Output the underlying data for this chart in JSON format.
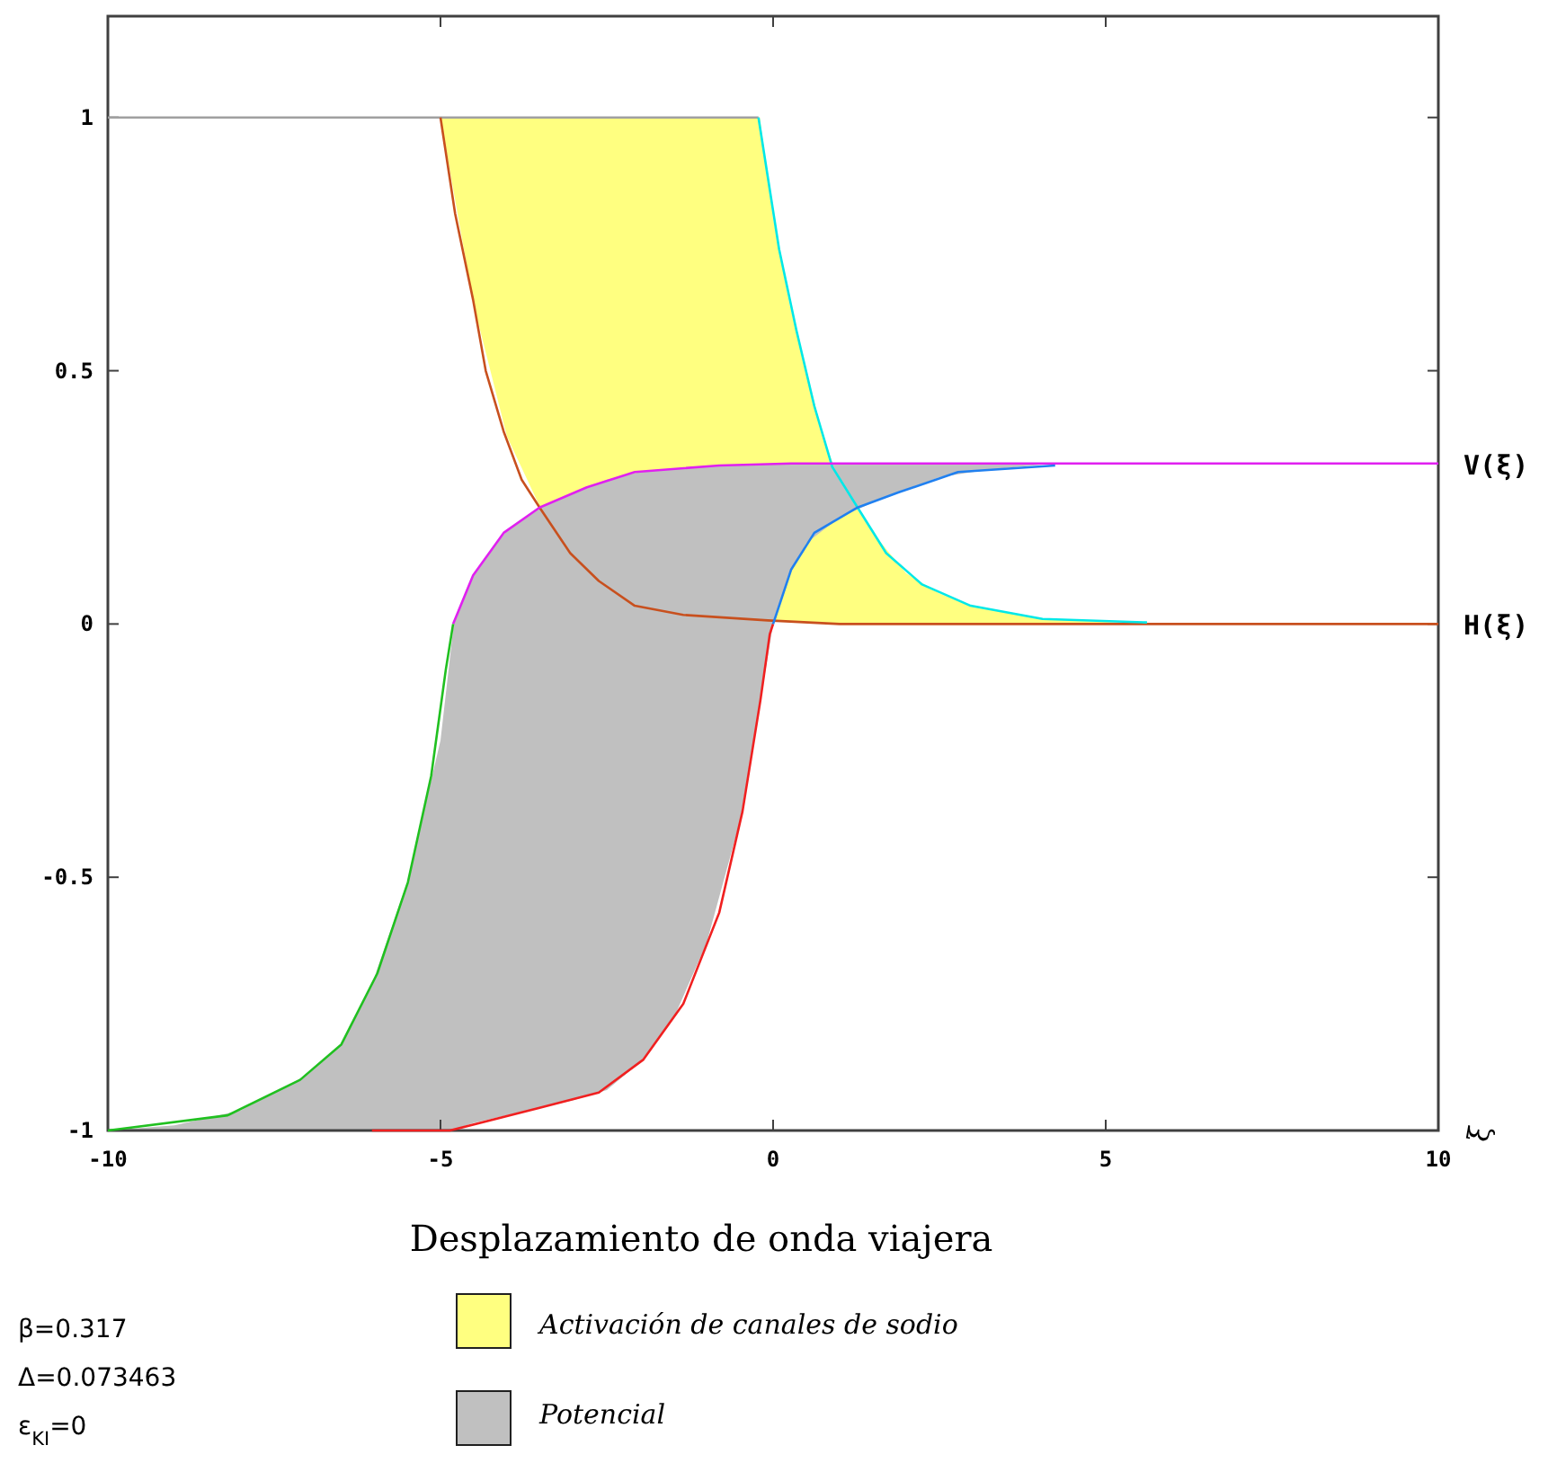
{
  "chart_data": {
    "type": "line",
    "xlabel": "Desplazamiento de onda viajera",
    "xlim": [
      -10,
      10
    ],
    "ylim": [
      -1,
      1.2
    ],
    "xticks": [
      -10,
      -5,
      0,
      5,
      10
    ],
    "yticks": [
      -1,
      -0.5,
      0,
      0.5,
      1
    ],
    "legend": "bottom",
    "grid": false,
    "series": [
      {
        "type": "area",
        "name": "Activación de canales de sodio",
        "color": "#ffff80",
        "x": [
          -5,
          -4.5,
          -4,
          -3.5,
          -3,
          -2.5,
          -2,
          -1.5,
          -1,
          -0.5,
          -0.2,
          0,
          0.25,
          0.5,
          0.75,
          1,
          1.5,
          2,
          2.5,
          3,
          4,
          5,
          5.6
        ],
        "values": [
          null,
          null,
          null,
          null,
          null,
          null,
          null,
          null,
          null,
          null,
          null,
          null,
          null,
          null,
          null,
          null,
          null,
          null,
          null,
          null,
          null,
          null,
          null
        ],
        "upper": [
          1,
          1,
          1,
          1,
          1,
          1,
          1,
          1,
          1,
          1,
          1,
          0.8,
          0.63,
          0.5,
          0.37,
          0.28,
          0.18,
          0.1,
          0.06,
          0.035,
          0.01,
          0.004,
          0
        ],
        "lower": [
          1,
          0.63,
          0.37,
          0.23,
          0.13,
          0.075,
          0.035,
          0.02,
          0.014,
          0.01,
          0.008,
          0.006,
          0.004,
          0.003,
          0.002,
          0,
          0,
          0,
          0,
          0,
          0,
          0,
          0
        ]
      },
      {
        "type": "area",
        "name": "Potencial",
        "color": "#c0c0c0",
        "x": [
          -10,
          -9,
          -8,
          -7,
          -6.5,
          -6,
          -5.5,
          -5,
          -4.8,
          -4.5,
          -4,
          -3.5,
          -3,
          -2.5,
          -2,
          -1.5,
          -1,
          -0.5,
          -0.2,
          0,
          0.25,
          0.5,
          1,
          1.5,
          2,
          2.5,
          3,
          3.5,
          4.24
        ],
        "values": [
          null,
          null,
          null,
          null,
          null,
          null,
          null,
          null,
          null,
          null,
          null,
          null,
          null,
          null,
          null,
          null,
          null,
          null,
          null,
          null,
          null,
          null,
          null,
          null,
          null,
          null,
          null,
          null,
          null
        ],
        "upper": [
          -1,
          -0.99,
          -0.96,
          -0.89,
          -0.83,
          -0.7,
          -0.51,
          -0.23,
          0,
          0.1,
          0.185,
          0.23,
          0.26,
          0.285,
          0.3,
          0.307,
          0.312,
          0.315,
          0.316,
          0.317,
          0.317,
          0.317,
          0.317,
          0.317,
          0.317,
          0.317,
          0.317,
          0.317,
          0.317
        ],
        "lower": [
          -1,
          -1,
          -1,
          -1,
          -1,
          -1,
          -1,
          -1,
          -0.998,
          -0.985,
          -0.97,
          -0.955,
          -0.94,
          -0.92,
          -0.865,
          -0.78,
          -0.63,
          -0.39,
          -0.16,
          0,
          0.1,
          0.16,
          0.21,
          0.24,
          0.265,
          0.29,
          0.3,
          0.308,
          0.317
        ]
      },
      {
        "color": "#a0a0a0",
        "x": [
          -10,
          -0.22
        ],
        "values": [
          1,
          1
        ]
      },
      {
        "color": "#c8501e",
        "x": [
          -5,
          -4.78,
          -4.51,
          -4.32,
          -4.05,
          -3.78,
          -3.51,
          -3.05,
          -2.62,
          -2.08,
          -1.35,
          -0.08,
          1,
          10
        ],
        "values": [
          1,
          0.81,
          0.64,
          0.5,
          0.38,
          0.285,
          0.23,
          0.14,
          0.085,
          0.036,
          0.018,
          0.007,
          0,
          0
        ]
      },
      {
        "color": "#00e8e8",
        "x": [
          -0.22,
          0.09,
          0.35,
          0.62,
          0.89,
          1.27,
          1.7,
          2.24,
          2.97,
          4.05,
          5.62
        ],
        "values": [
          1,
          0.74,
          0.58,
          0.43,
          0.31,
          0.23,
          0.14,
          0.078,
          0.036,
          0.01,
          0.003
        ]
      },
      {
        "color": "#e020f0",
        "x": [
          -4.81,
          -4.51,
          -4.05,
          -3.51,
          -2.8,
          -2.08,
          -0.81,
          0.27,
          10
        ],
        "values": [
          0,
          0.096,
          0.18,
          0.23,
          0.27,
          0.3,
          0.313,
          0.317,
          0.317
        ]
      },
      {
        "color": "#20c020",
        "x": [
          -10,
          -8.2,
          -7.11,
          -6.49,
          -5.95,
          -5.49,
          -5.14,
          -4.92,
          -4.81
        ],
        "values": [
          -1,
          -0.97,
          -0.9,
          -0.83,
          -0.69,
          -0.51,
          -0.3,
          -0.09,
          0
        ]
      },
      {
        "color": "#f02020",
        "x": [
          -6.03,
          -4.86,
          -3.51,
          -2.62,
          -1.95,
          -1.35,
          -0.81,
          -0.46,
          -0.19,
          -0.05,
          0
        ],
        "values": [
          -1,
          -1,
          -0.955,
          -0.925,
          -0.86,
          -0.75,
          -0.57,
          -0.37,
          -0.15,
          -0.02,
          0
        ]
      },
      {
        "color": "#2080f0",
        "x": [
          0,
          0.27,
          0.62,
          1.27,
          1.89,
          2.78,
          4.24
        ],
        "values": [
          0,
          0.107,
          0.18,
          0.23,
          0.26,
          0.3,
          0.313
        ]
      }
    ],
    "annotations": [
      {
        "text": "V(ξ)",
        "x": 10,
        "y": 0.317
      },
      {
        "text": "H(ξ)",
        "x": 10,
        "y": 0
      },
      "ξ",
      "β=0.317",
      "Δ=0.073463",
      "ε$_{KI}$=0"
    ]
  }
}
